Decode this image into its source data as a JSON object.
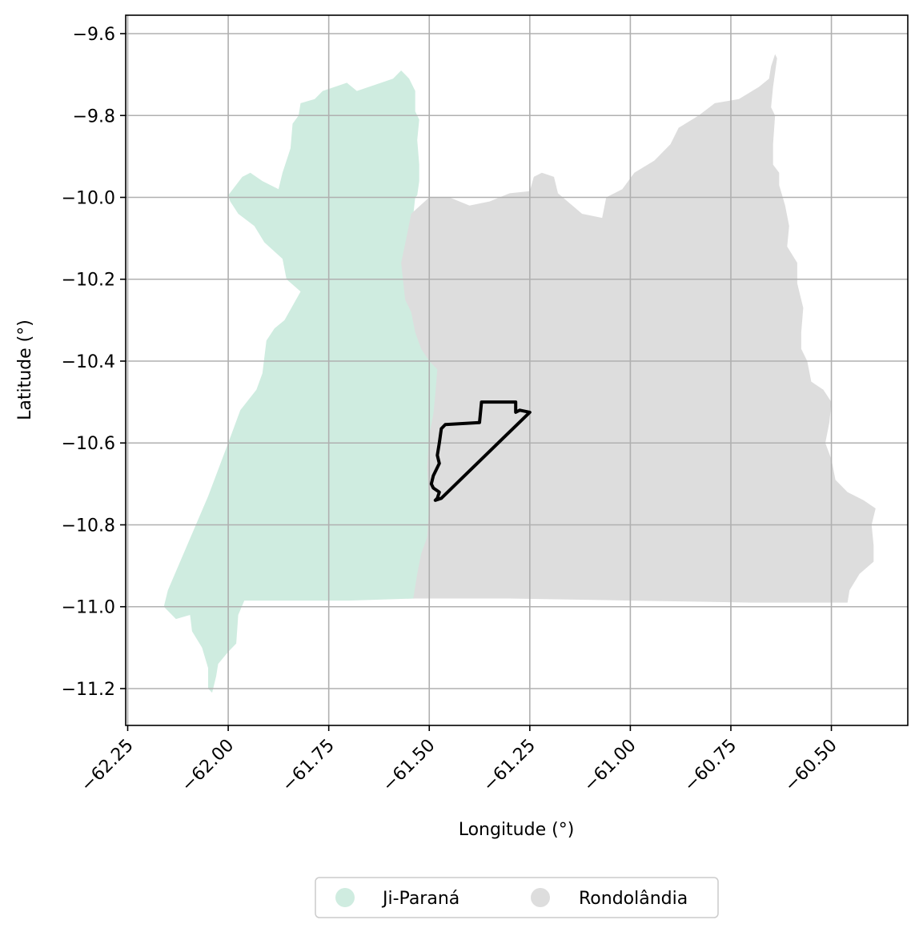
{
  "colors": {
    "ji_parana": "#cfece0",
    "rondolandia": "#dddddd",
    "boundary": "#000000",
    "grid": "#b0b0b0"
  },
  "axes": {
    "xlabel": "Longitude (°)",
    "ylabel": "Latitude (°)",
    "xlim": [
      -62.255,
      -60.31
    ],
    "ylim": [
      -11.29,
      -9.555
    ],
    "x_ticks": [
      -62.25,
      -62.0,
      -61.75,
      -61.5,
      -61.25,
      -61.0,
      -60.75,
      -60.5
    ],
    "x_tick_labels": [
      "−62.25",
      "−62.00",
      "−61.75",
      "−61.50",
      "−61.25",
      "−61.00",
      "−60.75",
      "−60.50"
    ],
    "y_ticks": [
      -9.6,
      -9.8,
      -10.0,
      -10.2,
      -10.4,
      -10.6,
      -10.8,
      -11.0,
      -11.2
    ],
    "y_tick_labels": [
      "−9.6",
      "−9.8",
      "−10.0",
      "−10.2",
      "−10.4",
      "−10.6",
      "−10.8",
      "−11.0",
      "−11.2"
    ],
    "grid": true
  },
  "legend": {
    "placement": "bottom-center",
    "items": [
      {
        "label": "Ji-Paraná",
        "color": "#cfece0"
      },
      {
        "label": "Rondolândia",
        "color": "#dddddd"
      }
    ]
  },
  "map": {
    "regions": [
      {
        "name": "Ji-Paraná",
        "color": "#cfece0",
        "coords": [
          [
            -61.705,
            -9.72
          ],
          [
            -61.68,
            -9.74
          ],
          [
            -61.62,
            -9.72
          ],
          [
            -61.59,
            -9.71
          ],
          [
            -61.57,
            -9.69
          ],
          [
            -61.55,
            -9.71
          ],
          [
            -61.535,
            -9.74
          ],
          [
            -61.535,
            -9.79
          ],
          [
            -61.525,
            -9.81
          ],
          [
            -61.53,
            -9.86
          ],
          [
            -61.525,
            -9.92
          ],
          [
            -61.525,
            -9.96
          ],
          [
            -61.53,
            -9.995
          ],
          [
            -61.535,
            -10.0
          ],
          [
            -61.545,
            -10.09
          ],
          [
            -61.555,
            -10.16
          ],
          [
            -61.545,
            -10.2
          ],
          [
            -61.525,
            -10.25
          ],
          [
            -61.52,
            -10.28
          ],
          [
            -61.505,
            -10.31
          ],
          [
            -61.485,
            -10.37
          ],
          [
            -61.48,
            -10.41
          ],
          [
            -61.47,
            -10.43
          ],
          [
            -61.48,
            -10.48
          ],
          [
            -61.485,
            -10.53
          ],
          [
            -61.49,
            -10.58
          ],
          [
            -61.49,
            -10.66
          ],
          [
            -61.485,
            -10.75
          ],
          [
            -61.49,
            -10.83
          ],
          [
            -61.505,
            -10.87
          ],
          [
            -61.52,
            -10.92
          ],
          [
            -61.535,
            -10.98
          ],
          [
            -61.7,
            -10.985
          ],
          [
            -61.96,
            -10.985
          ],
          [
            -61.975,
            -11.02
          ],
          [
            -61.98,
            -11.09
          ],
          [
            -62.0,
            -11.11
          ],
          [
            -62.025,
            -11.14
          ],
          [
            -62.03,
            -11.17
          ],
          [
            -62.04,
            -11.21
          ],
          [
            -62.05,
            -11.2
          ],
          [
            -62.05,
            -11.15
          ],
          [
            -62.065,
            -11.1
          ],
          [
            -62.09,
            -11.06
          ],
          [
            -62.095,
            -11.02
          ],
          [
            -62.13,
            -11.03
          ],
          [
            -62.16,
            -11.0
          ],
          [
            -62.15,
            -10.96
          ],
          [
            -62.05,
            -10.73
          ],
          [
            -62.0,
            -10.6
          ],
          [
            -61.97,
            -10.52
          ],
          [
            -61.93,
            -10.47
          ],
          [
            -61.915,
            -10.43
          ],
          [
            -61.905,
            -10.35
          ],
          [
            -61.885,
            -10.32
          ],
          [
            -61.86,
            -10.3
          ],
          [
            -61.82,
            -10.23
          ],
          [
            -61.855,
            -10.2
          ],
          [
            -61.865,
            -10.15
          ],
          [
            -61.91,
            -10.11
          ],
          [
            -61.935,
            -10.07
          ],
          [
            -61.975,
            -10.04
          ],
          [
            -61.995,
            -10.01
          ],
          [
            -62.0,
            -9.995
          ],
          [
            -61.965,
            -9.95
          ],
          [
            -61.945,
            -9.94
          ],
          [
            -61.915,
            -9.96
          ],
          [
            -61.875,
            -9.98
          ],
          [
            -61.865,
            -9.94
          ],
          [
            -61.845,
            -9.88
          ],
          [
            -61.84,
            -9.82
          ],
          [
            -61.825,
            -9.8
          ],
          [
            -61.82,
            -9.77
          ],
          [
            -61.785,
            -9.76
          ],
          [
            -61.765,
            -9.74
          ]
        ]
      },
      {
        "name": "Rondolândia",
        "color": "#dddddd",
        "coords": [
          [
            -61.5,
            -10.0
          ],
          [
            -61.45,
            -10.0
          ],
          [
            -61.4,
            -10.02
          ],
          [
            -61.35,
            -10.01
          ],
          [
            -61.3,
            -9.99
          ],
          [
            -61.25,
            -9.985
          ],
          [
            -61.24,
            -9.95
          ],
          [
            -61.22,
            -9.94
          ],
          [
            -61.19,
            -9.95
          ],
          [
            -61.18,
            -9.99
          ],
          [
            -61.12,
            -10.04
          ],
          [
            -61.07,
            -10.05
          ],
          [
            -61.06,
            -10.0
          ],
          [
            -61.02,
            -9.98
          ],
          [
            -60.99,
            -9.94
          ],
          [
            -60.94,
            -9.91
          ],
          [
            -60.9,
            -9.87
          ],
          [
            -60.88,
            -9.83
          ],
          [
            -60.83,
            -9.8
          ],
          [
            -60.79,
            -9.77
          ],
          [
            -60.73,
            -9.76
          ],
          [
            -60.68,
            -9.73
          ],
          [
            -60.655,
            -9.71
          ],
          [
            -60.65,
            -9.68
          ],
          [
            -60.64,
            -9.65
          ],
          [
            -60.635,
            -9.66
          ],
          [
            -60.645,
            -9.73
          ],
          [
            -60.65,
            -9.78
          ],
          [
            -60.64,
            -9.8
          ],
          [
            -60.645,
            -9.87
          ],
          [
            -60.645,
            -9.92
          ],
          [
            -60.63,
            -9.94
          ],
          [
            -60.63,
            -9.97
          ],
          [
            -60.615,
            -10.02
          ],
          [
            -60.605,
            -10.07
          ],
          [
            -60.61,
            -10.12
          ],
          [
            -60.585,
            -10.16
          ],
          [
            -60.585,
            -10.21
          ],
          [
            -60.57,
            -10.27
          ],
          [
            -60.575,
            -10.33
          ],
          [
            -60.575,
            -10.37
          ],
          [
            -60.56,
            -10.4
          ],
          [
            -60.55,
            -10.45
          ],
          [
            -60.52,
            -10.47
          ],
          [
            -60.5,
            -10.5
          ],
          [
            -60.505,
            -10.55
          ],
          [
            -60.515,
            -10.6
          ],
          [
            -60.5,
            -10.64
          ],
          [
            -60.49,
            -10.69
          ],
          [
            -60.46,
            -10.72
          ],
          [
            -60.42,
            -10.74
          ],
          [
            -60.39,
            -10.76
          ],
          [
            -60.4,
            -10.8
          ],
          [
            -60.395,
            -10.85
          ],
          [
            -60.395,
            -10.89
          ],
          [
            -60.43,
            -10.92
          ],
          [
            -60.455,
            -10.96
          ],
          [
            -60.46,
            -10.99
          ],
          [
            -60.7,
            -10.99
          ],
          [
            -61.0,
            -10.985
          ],
          [
            -61.3,
            -10.98
          ],
          [
            -61.54,
            -10.98
          ],
          [
            -61.53,
            -10.92
          ],
          [
            -61.52,
            -10.87
          ],
          [
            -61.505,
            -10.83
          ],
          [
            -61.5,
            -10.75
          ],
          [
            -61.505,
            -10.66
          ],
          [
            -61.5,
            -10.58
          ],
          [
            -61.49,
            -10.53
          ],
          [
            -61.485,
            -10.48
          ],
          [
            -61.48,
            -10.42
          ],
          [
            -61.5,
            -10.4
          ],
          [
            -61.52,
            -10.37
          ],
          [
            -61.535,
            -10.33
          ],
          [
            -61.545,
            -10.28
          ],
          [
            -61.56,
            -10.25
          ],
          [
            -61.57,
            -10.16
          ],
          [
            -61.555,
            -10.09
          ],
          [
            -61.545,
            -10.04
          ]
        ]
      }
    ],
    "highlight_outline": {
      "color": "#000000",
      "coords": [
        [
          -61.25,
          -10.525
        ],
        [
          -61.275,
          -10.52
        ],
        [
          -61.285,
          -10.525
        ],
        [
          -61.285,
          -10.5
        ],
        [
          -61.37,
          -10.5
        ],
        [
          -61.375,
          -10.55
        ],
        [
          -61.46,
          -10.555
        ],
        [
          -61.47,
          -10.565
        ],
        [
          -61.475,
          -10.6
        ],
        [
          -61.48,
          -10.63
        ],
        [
          -61.475,
          -10.65
        ],
        [
          -61.49,
          -10.68
        ],
        [
          -61.495,
          -10.7
        ],
        [
          -61.49,
          -10.71
        ],
        [
          -61.475,
          -10.72
        ],
        [
          -61.48,
          -10.735
        ],
        [
          -61.485,
          -10.74
        ],
        [
          -61.47,
          -10.735
        ]
      ]
    }
  }
}
